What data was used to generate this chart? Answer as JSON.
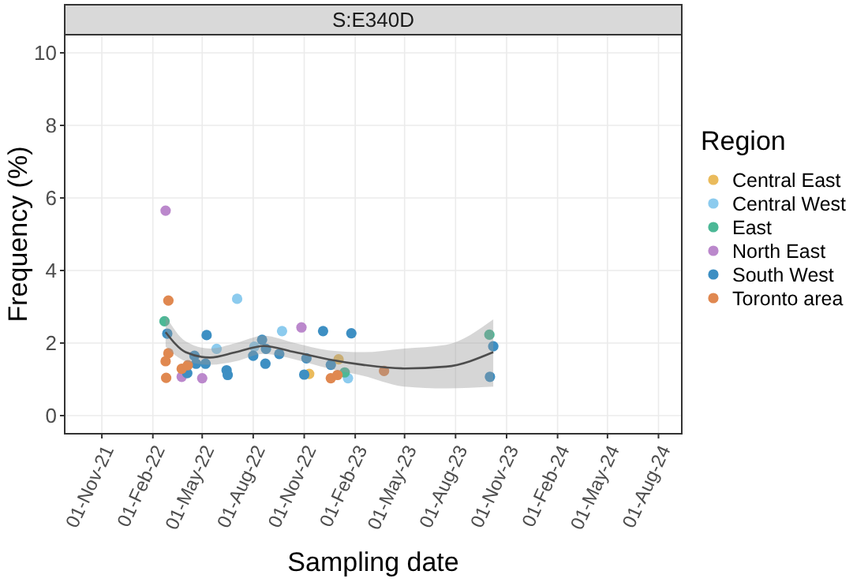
{
  "chart_data": {
    "type": "scatter",
    "title": "S:E340D",
    "xlabel": "Sampling date",
    "ylabel": "Frequency (%)",
    "legend_title": "Region",
    "legend": "right",
    "grid": true,
    "marker": "circle",
    "xlim": [
      "2021-08-26",
      "2024-09-12"
    ],
    "ylim": [
      -0.5,
      10.5
    ],
    "yticks": [
      0,
      2,
      4,
      6,
      8,
      10
    ],
    "xticks": [
      {
        "value": "2021-11-01",
        "label": "01-Nov-21"
      },
      {
        "value": "2022-02-01",
        "label": "01-Feb-22"
      },
      {
        "value": "2022-05-01",
        "label": "01-May-22"
      },
      {
        "value": "2022-08-01",
        "label": "01-Aug-22"
      },
      {
        "value": "2022-11-01",
        "label": "01-Nov-22"
      },
      {
        "value": "2023-02-01",
        "label": "01-Feb-23"
      },
      {
        "value": "2023-05-01",
        "label": "01-May-23"
      },
      {
        "value": "2023-08-01",
        "label": "01-Aug-23"
      },
      {
        "value": "2023-11-01",
        "label": "01-Nov-23"
      },
      {
        "value": "2024-02-01",
        "label": "01-Feb-24"
      },
      {
        "value": "2024-05-01",
        "label": "01-May-24"
      },
      {
        "value": "2024-08-01",
        "label": "01-Aug-24"
      }
    ],
    "series": [
      {
        "name": "Central East",
        "color": "#eabb5c",
        "x": [
          "2023-01-02",
          "2022-11-10"
        ],
        "values": [
          1.55,
          1.15
        ]
      },
      {
        "name": "Central West",
        "color": "#8ccbee",
        "x": [
          "2022-05-27",
          "2022-07-03",
          "2022-08-03",
          "2022-09-22",
          "2023-01-19"
        ],
        "values": [
          1.84,
          3.22,
          1.9,
          2.33,
          1.03
        ]
      },
      {
        "name": "East",
        "color": "#4cb896",
        "x": [
          "2022-02-22",
          "2023-01-13",
          "2023-10-01"
        ],
        "values": [
          2.6,
          1.19,
          2.23
        ]
      },
      {
        "name": "North East",
        "color": "#bb88cc",
        "x": [
          "2022-02-24",
          "2022-03-25",
          "2022-05-01",
          "2022-10-27"
        ],
        "values": [
          5.65,
          1.07,
          1.03,
          2.43
        ]
      },
      {
        "name": "South West",
        "color": "#3d8fc3",
        "x": [
          "2022-02-27",
          "2022-04-04",
          "2022-04-17",
          "2022-04-20",
          "2022-05-09",
          "2022-05-07",
          "2022-06-14",
          "2022-06-16",
          "2022-08-01",
          "2022-08-17",
          "2022-08-24",
          "2022-08-23",
          "2022-09-17",
          "2022-11-05",
          "2022-11-01",
          "2022-12-05",
          "2023-01-25",
          "2022-12-19",
          "2023-10-08",
          "2023-10-02"
        ],
        "values": [
          2.26,
          1.17,
          1.65,
          1.43,
          2.22,
          1.43,
          1.25,
          1.12,
          1.65,
          2.09,
          1.84,
          1.43,
          1.7,
          1.58,
          1.13,
          2.33,
          2.27,
          1.4,
          1.91,
          1.07
        ]
      },
      {
        "name": "Toronto area",
        "color": "#e08850",
        "x": [
          "2022-03-01",
          "2022-03-01",
          "2022-02-24",
          "2022-02-25",
          "2022-03-25",
          "2022-04-05",
          "2022-12-19",
          "2022-12-31",
          "2023-03-25"
        ],
        "values": [
          3.17,
          1.72,
          1.5,
          1.04,
          1.29,
          1.39,
          1.03,
          1.12,
          1.23
        ]
      },
      {
        "type": "line",
        "marker": "none",
        "color": "#4d4d4d",
        "x": [
          "2022-02-24",
          "2022-04-01",
          "2022-05-15",
          "2022-07-01",
          "2022-08-20",
          "2022-10-15",
          "2022-12-15",
          "2023-02-15",
          "2023-05-01",
          "2023-07-15",
          "2023-10-08"
        ],
        "values": [
          2.3,
          1.75,
          1.6,
          1.75,
          1.92,
          1.75,
          1.55,
          1.4,
          1.3,
          1.35,
          1.75
        ],
        "lower": [
          1.9,
          1.5,
          1.4,
          1.5,
          1.7,
          1.55,
          1.3,
          1.1,
          0.8,
          0.75,
          0.8
        ],
        "upper": [
          2.75,
          2.05,
          1.85,
          2.0,
          2.2,
          2.0,
          1.8,
          1.75,
          1.85,
          1.95,
          2.65
        ]
      }
    ]
  }
}
